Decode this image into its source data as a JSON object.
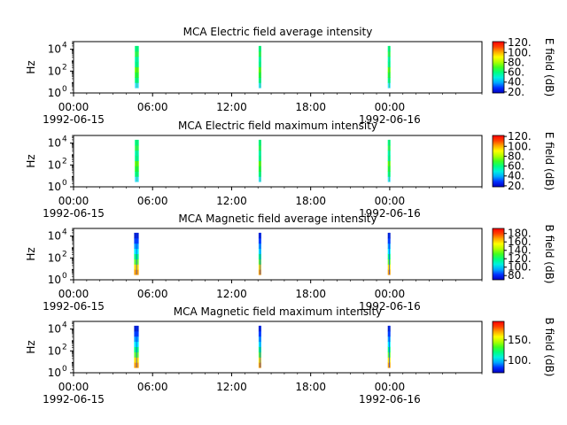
{
  "chart_data": [
    {
      "type": "heatmap",
      "title": "MCA  Electric field average intensity",
      "ylabel": "Hz",
      "yscale": "log",
      "yticks": [
        {
          "v": 1,
          "base": "10",
          "exp": "0"
        },
        {
          "v": 100,
          "base": "10",
          "exp": "2"
        },
        {
          "v": 10000,
          "base": "10",
          "exp": "4"
        }
      ],
      "xlim": [
        0,
        31
      ],
      "xticks": [
        {
          "v": 0,
          "l1": "00:00",
          "l2": "1992-06-15"
        },
        {
          "v": 6,
          "l1": "06:00",
          "l2": ""
        },
        {
          "v": 12,
          "l1": "12:00",
          "l2": ""
        },
        {
          "v": 18,
          "l1": "18:00",
          "l2": ""
        },
        {
          "v": 24,
          "l1": "00:00",
          "l2": "1992-06-16"
        }
      ],
      "colorbar": {
        "label": "E field (dB)",
        "min": 18,
        "max": 122,
        "ticks": [
          {
            "v": 20,
            "label": "20."
          },
          {
            "v": 40,
            "label": "40."
          },
          {
            "v": 60,
            "label": "60."
          },
          {
            "v": 80,
            "label": "80."
          },
          {
            "v": 100,
            "label": "100."
          },
          {
            "v": 120,
            "label": "120."
          }
        ]
      },
      "segments": [
        {
          "x0": 4.65,
          "x1": 4.95,
          "fmin": 3,
          "fmax": 20000,
          "pattern": "elec"
        },
        {
          "x0": 14.05,
          "x1": 14.2,
          "fmin": 3,
          "fmax": 20000,
          "pattern": "elec"
        },
        {
          "x0": 23.85,
          "x1": 24.05,
          "fmin": 3,
          "fmax": 20000,
          "pattern": "elec"
        }
      ]
    },
    {
      "type": "heatmap",
      "title": "MCA  Electric field maximum intensity",
      "ylabel": "Hz",
      "yscale": "log",
      "yticks": [
        {
          "v": 1,
          "base": "10",
          "exp": "0"
        },
        {
          "v": 100,
          "base": "10",
          "exp": "2"
        },
        {
          "v": 10000,
          "base": "10",
          "exp": "4"
        }
      ],
      "xlim": [
        0,
        31
      ],
      "xticks": [
        {
          "v": 0,
          "l1": "00:00",
          "l2": "1992-06-15"
        },
        {
          "v": 6,
          "l1": "06:00",
          "l2": ""
        },
        {
          "v": 12,
          "l1": "12:00",
          "l2": ""
        },
        {
          "v": 18,
          "l1": "18:00",
          "l2": ""
        },
        {
          "v": 24,
          "l1": "00:00",
          "l2": "1992-06-16"
        }
      ],
      "colorbar": {
        "label": "E field (dB)",
        "min": 18,
        "max": 122,
        "ticks": [
          {
            "v": 20,
            "label": "20."
          },
          {
            "v": 40,
            "label": "40."
          },
          {
            "v": 60,
            "label": "60."
          },
          {
            "v": 80,
            "label": "80."
          },
          {
            "v": 100,
            "label": "100."
          },
          {
            "v": 120,
            "label": "120."
          }
        ]
      },
      "segments": [
        {
          "x0": 4.65,
          "x1": 4.95,
          "fmin": 3,
          "fmax": 20000,
          "pattern": "elec"
        },
        {
          "x0": 14.05,
          "x1": 14.2,
          "fmin": 3,
          "fmax": 20000,
          "pattern": "elec"
        },
        {
          "x0": 23.85,
          "x1": 24.05,
          "fmin": 3,
          "fmax": 20000,
          "pattern": "elec"
        }
      ]
    },
    {
      "type": "heatmap",
      "title": "MCA  Magnetic field average intensity",
      "ylabel": "Hz",
      "yscale": "log",
      "yticks": [
        {
          "v": 1,
          "base": "10",
          "exp": "0"
        },
        {
          "v": 100,
          "base": "10",
          "exp": "2"
        },
        {
          "v": 10000,
          "base": "10",
          "exp": "4"
        }
      ],
      "xlim": [
        0,
        31
      ],
      "xticks": [
        {
          "v": 0,
          "l1": "00:00",
          "l2": "1992-06-15"
        },
        {
          "v": 6,
          "l1": "06:00",
          "l2": ""
        },
        {
          "v": 12,
          "l1": "12:00",
          "l2": ""
        },
        {
          "v": 18,
          "l1": "18:00",
          "l2": ""
        },
        {
          "v": 24,
          "l1": "00:00",
          "l2": "1992-06-16"
        }
      ],
      "colorbar": {
        "label": "B field (dB)",
        "min": 70,
        "max": 192,
        "ticks": [
          {
            "v": 80,
            "label": "80."
          },
          {
            "v": 100,
            "label": "100."
          },
          {
            "v": 120,
            "label": "120."
          },
          {
            "v": 140,
            "label": "140."
          },
          {
            "v": 160,
            "label": "160."
          },
          {
            "v": 180,
            "label": "180."
          }
        ]
      },
      "segments": [
        {
          "x0": 4.6,
          "x1": 4.95,
          "fmin": 3,
          "fmax": 20000,
          "pattern": "mag"
        },
        {
          "x0": 14.05,
          "x1": 14.2,
          "fmin": 3,
          "fmax": 20000,
          "pattern": "mag"
        },
        {
          "x0": 23.85,
          "x1": 24.05,
          "fmin": 3,
          "fmax": 20000,
          "pattern": "mag"
        }
      ]
    },
    {
      "type": "heatmap",
      "title": "MCA  Magnetic field maximum intensity",
      "ylabel": "Hz",
      "yscale": "log",
      "yticks": [
        {
          "v": 1,
          "base": "10",
          "exp": "0"
        },
        {
          "v": 100,
          "base": "10",
          "exp": "2"
        },
        {
          "v": 10000,
          "base": "10",
          "exp": "4"
        }
      ],
      "xlim": [
        0,
        31
      ],
      "xticks": [
        {
          "v": 0,
          "l1": "00:00",
          "l2": "1992-06-15"
        },
        {
          "v": 6,
          "l1": "06:00",
          "l2": ""
        },
        {
          "v": 12,
          "l1": "12:00",
          "l2": ""
        },
        {
          "v": 18,
          "l1": "18:00",
          "l2": ""
        },
        {
          "v": 24,
          "l1": "00:00",
          "l2": "1992-06-16"
        }
      ],
      "colorbar": {
        "label": "B field (dB)",
        "min": 70,
        "max": 195,
        "ticks": [
          {
            "v": 100,
            "label": "100."
          },
          {
            "v": 150,
            "label": "150."
          }
        ]
      },
      "segments": [
        {
          "x0": 4.6,
          "x1": 4.95,
          "fmin": 3,
          "fmax": 20000,
          "pattern": "mag"
        },
        {
          "x0": 14.05,
          "x1": 14.2,
          "fmin": 3,
          "fmax": 20000,
          "pattern": "mag"
        },
        {
          "x0": 23.85,
          "x1": 24.05,
          "fmin": 3,
          "fmax": 20000,
          "pattern": "mag"
        }
      ]
    }
  ]
}
